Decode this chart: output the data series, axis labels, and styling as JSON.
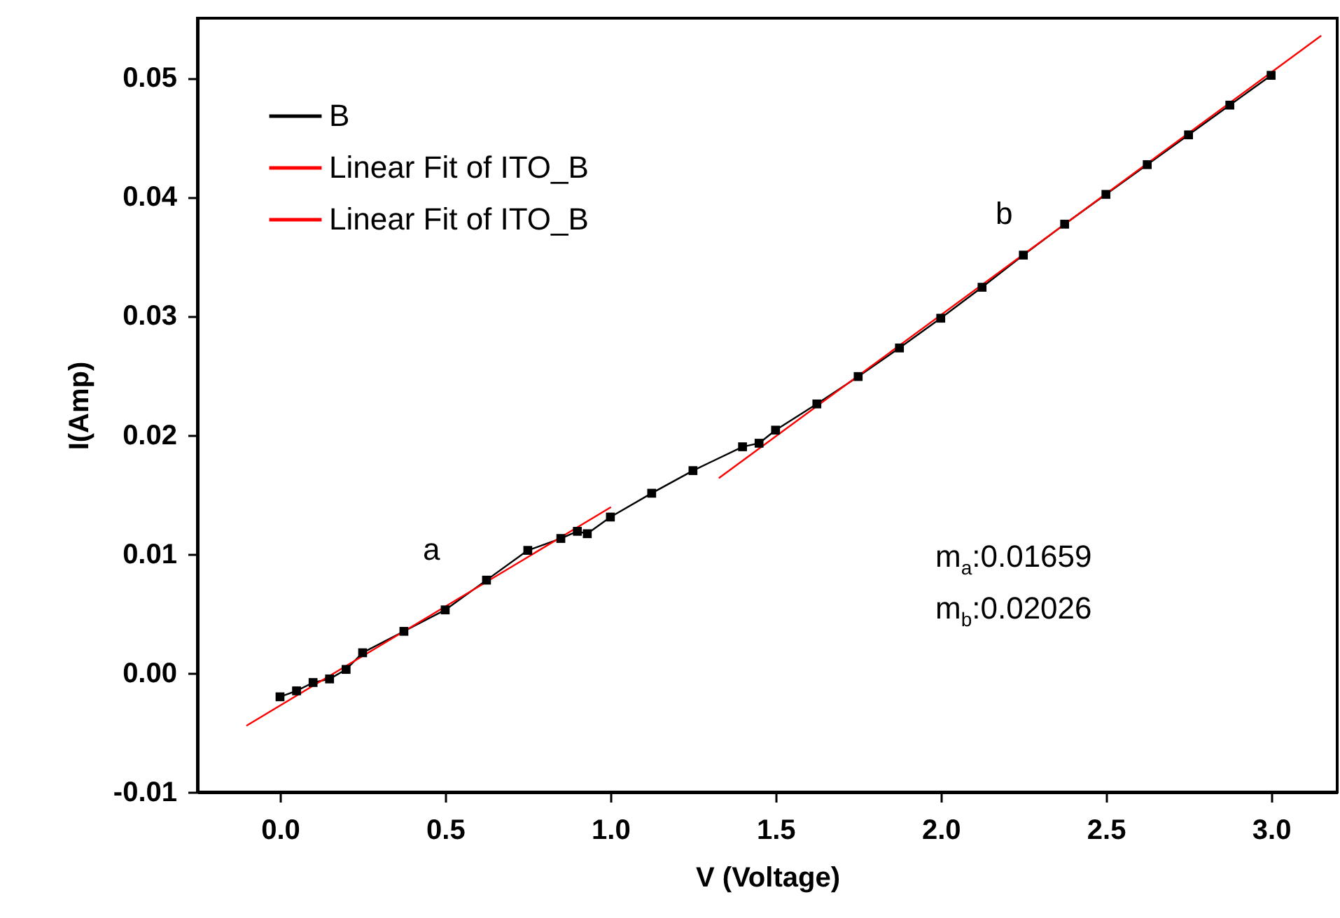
{
  "chart_data": {
    "type": "line",
    "xlabel": "V (Voltage)",
    "ylabel": "I(Amp)",
    "xlim": [
      -0.25,
      3.2
    ],
    "ylim": [
      -0.01,
      0.055
    ],
    "xticks": [
      {
        "value": 0,
        "label": "0.0"
      },
      0.5,
      {
        "value": 1,
        "label": "1.0"
      },
      1.5,
      {
        "value": 2,
        "label": "2.0"
      },
      2.5,
      {
        "value": 3,
        "label": "3.0"
      }
    ],
    "yticks": [
      -0.01,
      {
        "value": 0,
        "label": "0.00"
      },
      0.01,
      0.02,
      0.03,
      0.04,
      0.05
    ],
    "legend": "top left",
    "grid": false,
    "series": [
      {
        "name": "B",
        "color": "#000000",
        "marker": "square",
        "x": [
          0,
          0.05,
          0.1,
          0.15,
          0.2,
          0.25,
          0.375,
          0.5,
          0.625,
          0.75,
          0.85,
          0.9,
          0.93,
          1.0,
          1.125,
          1.25,
          1.4,
          1.45,
          1.5,
          1.625,
          1.75,
          1.875,
          2.0,
          2.125,
          2.25,
          2.375,
          2.5,
          2.625,
          2.75,
          2.875,
          3.0
        ],
        "values": [
          -0.002,
          -0.0015,
          -0.0008,
          -0.0005,
          0.0003,
          0.0017,
          0.0035,
          0.0053,
          0.0078,
          0.0103,
          0.0113,
          0.0119,
          0.0117,
          0.0131,
          0.0151,
          0.017,
          0.019,
          0.0193,
          0.0204,
          0.0226,
          0.0249,
          0.0273,
          0.0298,
          0.0324,
          0.0351,
          0.0377,
          0.0402,
          0.0427,
          0.0452,
          0.0477,
          0.0502
        ]
      },
      {
        "name": "Linear Fit of ITO_B",
        "color": "#ff0000",
        "x": [
          -0.1,
          1.0
        ],
        "values": [
          -0.0044,
          0.0139
        ]
      },
      {
        "name": "Linear Fit of ITO_B",
        "color": "#ff0000",
        "x": [
          1.33,
          3.15
        ],
        "values": [
          0.0164,
          0.0535
        ]
      }
    ],
    "annotations": [
      "a",
      "b",
      "m$_{a}$:0.01659",
      "m$_{b}$:0.02026"
    ]
  }
}
